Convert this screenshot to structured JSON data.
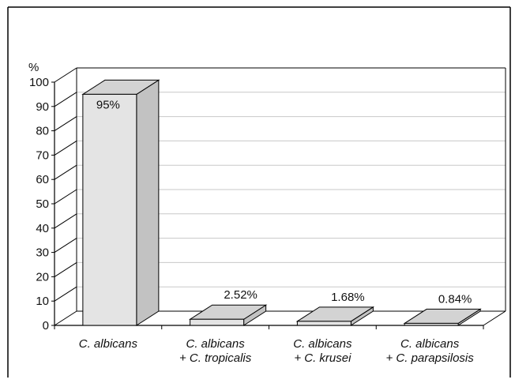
{
  "chart_data": {
    "type": "bar",
    "title": "",
    "xlabel": "",
    "ylabel": "%",
    "ylim": [
      0,
      100
    ],
    "yticks": [
      0,
      10,
      20,
      30,
      40,
      50,
      60,
      70,
      80,
      90,
      100
    ],
    "grid": true,
    "categories": [
      [
        "C. albicans"
      ],
      [
        "C. albicans",
        "+ C. tropicalis"
      ],
      [
        "C. albicans",
        "+ C. krusei"
      ],
      [
        "C. albicans",
        "+ C. parapsilosis"
      ]
    ],
    "values": [
      95,
      2.52,
      1.68,
      0.84
    ],
    "data_labels": [
      "95%",
      "2.52%",
      "1.68%",
      "0.84%"
    ],
    "colors": {
      "bar_front": "#e4e4e4",
      "bar_side": "#c2c2c2",
      "bar_top": "#d3d3d3",
      "grid": "#c8c8c8",
      "axis": "#000000"
    }
  }
}
